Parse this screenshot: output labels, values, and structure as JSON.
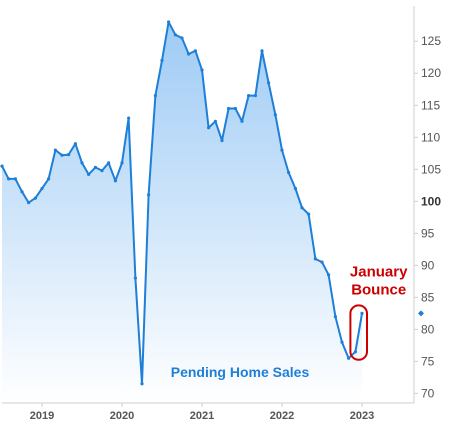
{
  "chart_data": {
    "type": "area",
    "series": [
      {
        "name": "Pending Home Sales",
        "x": [
          2018.5,
          2018.583,
          2018.667,
          2018.75,
          2018.833,
          2018.917,
          2019.0,
          2019.083,
          2019.167,
          2019.25,
          2019.333,
          2019.417,
          2019.5,
          2019.583,
          2019.667,
          2019.75,
          2019.833,
          2019.917,
          2020.0,
          2020.083,
          2020.167,
          2020.25,
          2020.333,
          2020.417,
          2020.5,
          2020.583,
          2020.667,
          2020.75,
          2020.833,
          2020.917,
          2021.0,
          2021.083,
          2021.167,
          2021.25,
          2021.333,
          2021.417,
          2021.5,
          2021.583,
          2021.667,
          2021.75,
          2021.833,
          2021.917,
          2022.0,
          2022.083,
          2022.167,
          2022.25,
          2022.333,
          2022.417,
          2022.5,
          2022.583,
          2022.667,
          2022.75,
          2022.833,
          2022.917,
          2023.0
        ],
        "values": [
          105.5,
          103.5,
          103.5,
          101.5,
          99.8,
          100.5,
          102.0,
          103.5,
          108.0,
          107.2,
          107.3,
          109.0,
          106.0,
          104.2,
          105.3,
          104.8,
          106.0,
          103.2,
          106.0,
          113.0,
          88.0,
          71.5,
          101.0,
          116.5,
          122.0,
          128.0,
          126.0,
          125.5,
          123.0,
          123.5,
          120.5,
          111.5,
          112.5,
          109.5,
          114.5,
          114.5,
          112.5,
          116.5,
          116.5,
          123.5,
          118.5,
          113.5,
          108.0,
          104.5,
          102.0,
          99.0,
          98.0,
          91.0,
          90.5,
          88.5,
          82.0,
          78.0,
          75.5,
          76.5,
          82.5
        ]
      }
    ],
    "x_ticks": [
      "2019",
      "2020",
      "2021",
      "2022",
      "2023"
    ],
    "x_tick_values": [
      2019,
      2020,
      2021,
      2022,
      2023
    ],
    "y_ticks": [
      70,
      75,
      80,
      85,
      90,
      95,
      100,
      105,
      110,
      115,
      120,
      125
    ],
    "y_tick_labels": [
      "70",
      "75",
      "80",
      "85",
      "90",
      "95",
      "100",
      "105",
      "110",
      "115",
      "120",
      "125"
    ],
    "y_bold_tick": 100,
    "xlim": [
      2018.5,
      2023.65
    ],
    "ylim": [
      68.5,
      130.5
    ],
    "grid": false,
    "y_axis_side": "right",
    "colors": {
      "line": "#1e7fd8",
      "fill_top": "#9ecbf5",
      "fill_bottom": "#ffffff",
      "annotation": "#cc0000",
      "axis": "#cfcfcf"
    },
    "marker_value": 82.5,
    "annotation": {
      "lines": [
        "January",
        "Bounce"
      ]
    },
    "series_label": "Pending Home Sales"
  }
}
